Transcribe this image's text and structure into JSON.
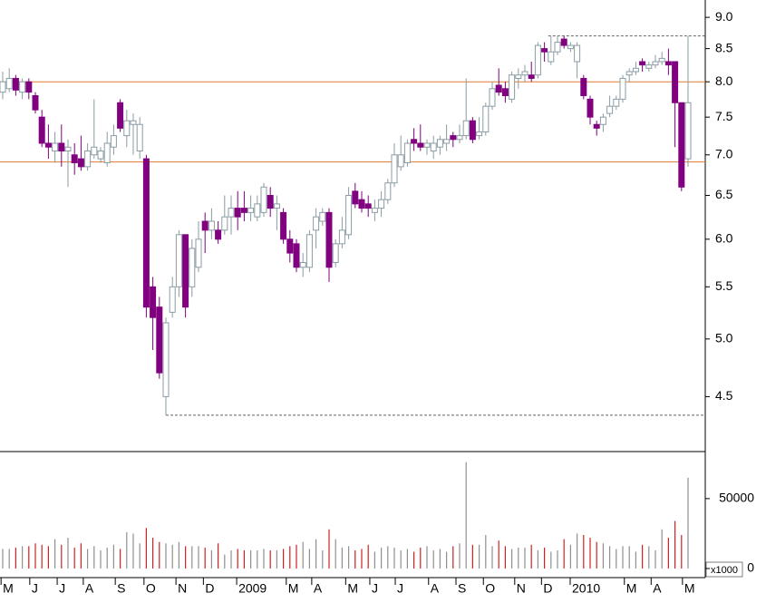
{
  "chart_data": {
    "type": "candlestick",
    "open": [
      7.85,
      7.9,
      8.05,
      7.85,
      8.0,
      7.8,
      7.5,
      7.15,
      7.05,
      7.15,
      7.05,
      7.0,
      6.95,
      6.85,
      7.0,
      6.95,
      6.9,
      7.1,
      7.7,
      7.25,
      7.4,
      7.05,
      6.95,
      5.5,
      5.3,
      4.5,
      5.25,
      5.5,
      6.05,
      5.5,
      5.7,
      6.2,
      6.1,
      6.1,
      6.1,
      6.25,
      6.35,
      6.35,
      6.3,
      6.25,
      6.3,
      6.5,
      6.35,
      6.3,
      6.0,
      5.95,
      5.7,
      5.7,
      6.1,
      6.2,
      6.3,
      5.75,
      5.95,
      6.05,
      6.55,
      6.45,
      6.4,
      6.3,
      6.35,
      6.45,
      6.65,
      6.85,
      6.9,
      7.2,
      7.15,
      7.1,
      7.05,
      7.1,
      7.15,
      7.25,
      7.2,
      7.25,
      7.45,
      7.25,
      7.3,
      7.65,
      7.95,
      7.9,
      7.75,
      8.05,
      8.1,
      8.1,
      8.1,
      8.5,
      8.3,
      8.45,
      8.65,
      8.5,
      8.3,
      8.05,
      7.75,
      7.4,
      7.4,
      7.55,
      7.65,
      7.75,
      8.1,
      8.15,
      8.3,
      8.2,
      8.25,
      8.3,
      8.3,
      8.3,
      7.7,
      6.95
    ],
    "high": [
      8.15,
      8.2,
      8.1,
      8.05,
      8.05,
      7.85,
      7.6,
      7.4,
      7.3,
      7.4,
      7.2,
      7.15,
      7.25,
      7.15,
      7.75,
      7.1,
      7.3,
      7.4,
      7.75,
      7.6,
      7.55,
      7.5,
      7.0,
      5.6,
      5.4,
      5.2,
      5.6,
      6.1,
      6.05,
      6.0,
      6.2,
      6.3,
      6.35,
      6.2,
      6.5,
      6.5,
      6.55,
      6.55,
      6.5,
      6.5,
      6.65,
      6.6,
      6.5,
      6.35,
      6.1,
      6.0,
      5.85,
      6.1,
      6.35,
      6.35,
      6.35,
      6.0,
      6.25,
      6.6,
      6.65,
      6.55,
      6.5,
      6.45,
      6.55,
      6.7,
      7.15,
      7.25,
      7.2,
      7.35,
      7.4,
      7.2,
      7.25,
      7.25,
      7.4,
      7.3,
      7.4,
      8.05,
      7.5,
      7.5,
      7.7,
      8.0,
      8.2,
      8.0,
      8.15,
      8.2,
      8.25,
      8.3,
      8.6,
      8.6,
      8.7,
      8.7,
      8.7,
      8.6,
      8.6,
      8.1,
      7.8,
      7.45,
      7.55,
      7.8,
      7.8,
      8.1,
      8.2,
      8.3,
      8.35,
      8.3,
      8.4,
      8.45,
      8.5,
      8.3,
      7.7,
      8.7
    ],
    "low": [
      7.75,
      7.85,
      7.8,
      7.75,
      7.75,
      7.55,
      7.1,
      6.95,
      6.9,
      6.85,
      6.6,
      6.75,
      6.8,
      6.8,
      6.95,
      6.9,
      6.85,
      7.0,
      7.3,
      7.1,
      7.0,
      6.95,
      5.2,
      4.9,
      4.65,
      4.35,
      5.2,
      5.4,
      5.2,
      5.4,
      5.65,
      5.85,
      6.0,
      5.95,
      6.05,
      6.05,
      6.1,
      6.2,
      6.2,
      6.2,
      6.25,
      6.25,
      6.1,
      5.95,
      5.75,
      5.65,
      5.6,
      5.65,
      5.9,
      6.15,
      5.55,
      5.7,
      5.9,
      6.0,
      6.35,
      6.3,
      6.25,
      6.2,
      6.25,
      6.4,
      6.6,
      6.8,
      6.85,
      7.05,
      7.05,
      7.0,
      6.95,
      7.0,
      7.05,
      7.1,
      7.15,
      7.2,
      7.15,
      7.2,
      7.25,
      7.6,
      7.8,
      7.7,
      7.7,
      7.9,
      8.0,
      8.0,
      8.05,
      8.3,
      8.25,
      8.4,
      8.5,
      8.45,
      8.05,
      7.75,
      7.4,
      7.25,
      7.3,
      7.5,
      7.6,
      7.7,
      8.0,
      8.1,
      8.15,
      8.15,
      8.2,
      8.25,
      8.1,
      7.1,
      6.55,
      6.85
    ],
    "close": [
      8.0,
      8.05,
      7.88,
      8.0,
      7.85,
      7.6,
      7.15,
      7.1,
      7.15,
      7.05,
      7.1,
      6.9,
      6.85,
      7.05,
      7.1,
      7.05,
      7.15,
      7.25,
      7.35,
      7.45,
      7.45,
      7.4,
      5.3,
      5.2,
      4.7,
      5.15,
      5.5,
      6.05,
      5.3,
      5.9,
      6.0,
      6.1,
      6.2,
      6.0,
      6.25,
      6.35,
      6.25,
      6.3,
      6.35,
      6.4,
      6.6,
      6.35,
      6.4,
      6.0,
      5.85,
      5.7,
      5.75,
      6.05,
      6.25,
      6.3,
      5.7,
      5.95,
      6.1,
      6.5,
      6.4,
      6.35,
      6.35,
      6.35,
      6.45,
      6.65,
      7.0,
      7.0,
      7.15,
      7.15,
      7.1,
      7.15,
      7.15,
      7.2,
      7.2,
      7.2,
      7.25,
      7.45,
      7.2,
      7.3,
      7.65,
      7.9,
      7.85,
      7.8,
      8.1,
      8.1,
      8.15,
      8.05,
      8.55,
      8.45,
      8.45,
      8.6,
      8.55,
      8.55,
      8.55,
      7.8,
      7.5,
      7.35,
      7.5,
      7.65,
      7.75,
      8.05,
      8.15,
      8.2,
      8.25,
      8.25,
      8.3,
      8.35,
      8.25,
      7.7,
      6.6,
      7.7
    ],
    "volume": [
      14000,
      14000,
      15000,
      16000,
      16000,
      18000,
      17000,
      16000,
      21000,
      17000,
      22000,
      15000,
      18000,
      14000,
      16000,
      13000,
      15000,
      17000,
      14000,
      26000,
      25000,
      18000,
      29000,
      22000,
      19000,
      18000,
      17000,
      19000,
      16000,
      16000,
      16000,
      15000,
      13000,
      18000,
      10000,
      13000,
      14000,
      13000,
      13000,
      13000,
      14000,
      13000,
      13000,
      14000,
      16000,
      17000,
      19000,
      14000,
      21000,
      13000,
      28000,
      21000,
      15000,
      16000,
      13000,
      14000,
      17000,
      12000,
      15000,
      16000,
      15000,
      13000,
      14000,
      12000,
      15000,
      16000,
      13000,
      14000,
      12000,
      16000,
      18000,
      76000,
      17000,
      17000,
      24000,
      16000,
      20000,
      16000,
      14000,
      15000,
      15000,
      17000,
      13000,
      15000,
      12000,
      13000,
      21000,
      17000,
      25000,
      24000,
      22000,
      19000,
      18000,
      16000,
      14000,
      16000,
      16000,
      12000,
      17000,
      16000,
      13000,
      28000,
      22000,
      34000,
      24000,
      65000
    ],
    "log_scale": true,
    "ylim": [
      4.07,
      9.29
    ],
    "yticks": [
      4.5,
      {
        "value": 5,
        "label": "5.0"
      },
      5.5,
      {
        "value": 6,
        "label": "6.0"
      },
      6.5,
      {
        "value": 7,
        "label": "7.0"
      },
      7.5,
      {
        "value": 8,
        "label": "8.0"
      },
      8.5,
      {
        "value": 9,
        "label": "9.0"
      }
    ],
    "y2lim": [
      -6500,
      83000
    ],
    "y2ticks": [
      0,
      50000
    ],
    "y2_unit": "x1000",
    "xticks": [
      {
        "value": 0.3,
        "label": "M"
      },
      {
        "value": 4.7,
        "label": "J"
      },
      {
        "value": 8.9,
        "label": "J"
      },
      {
        "value": 12.9,
        "label": "A"
      },
      {
        "value": 17.8,
        "label": "S"
      },
      {
        "value": 22.2,
        "label": "O"
      },
      {
        "value": 27.1,
        "label": "N"
      },
      {
        "value": 31.3,
        "label": "D"
      },
      {
        "value": 36.4,
        "label": "2009"
      },
      {
        "value": 44,
        "label": "M"
      },
      {
        "value": 47.9,
        "label": "A"
      },
      {
        "value": 53.1,
        "label": "M"
      },
      {
        "value": 56.8,
        "label": "J"
      },
      {
        "value": 60.7,
        "label": "J"
      },
      {
        "value": 65.8,
        "label": "A"
      },
      {
        "value": 70,
        "label": "S"
      },
      {
        "value": 74.2,
        "label": "O"
      },
      {
        "value": 79,
        "label": "N"
      },
      {
        "value": 83.1,
        "label": "D"
      },
      {
        "value": 87.5,
        "label": "2010"
      },
      {
        "value": 95.8,
        "label": "M"
      },
      {
        "value": 99.9,
        "label": "A"
      },
      {
        "value": 104.7,
        "label": "M"
      }
    ],
    "hlines": [
      {
        "value": 8.0,
        "color": "#e07830"
      },
      {
        "value": 6.91,
        "color": "#e07830"
      }
    ],
    "extreme_lines": true,
    "up_color": "#8a9ca4",
    "down_color": "#800080",
    "volume_up_color": "#909090",
    "volume_down_color": "#d02020"
  }
}
